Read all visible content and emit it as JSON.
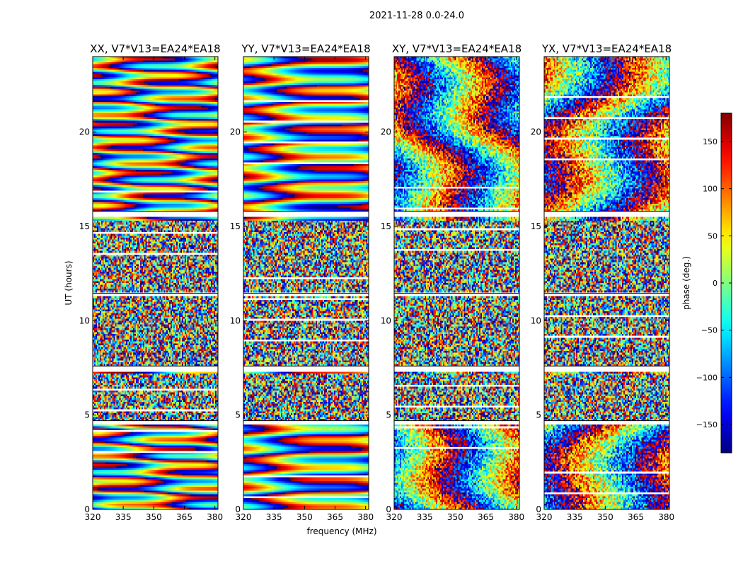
{
  "figure": {
    "suptitle": "2021-11-28 0.0-24.0",
    "xlabel": "frequency (MHz)",
    "ylabel": "UT (hours)"
  },
  "chart_data": {
    "type": "heatmap",
    "suptitle": "2021-11-28 0.0-24.0",
    "xlabel": "frequency (MHz)",
    "ylabel": "UT (hours)",
    "xlim": [
      320,
      381.5
    ],
    "ylim": [
      0,
      24
    ],
    "xticks": [
      320,
      335,
      350,
      365,
      380
    ],
    "yticks": [
      0,
      5,
      10,
      15,
      20
    ],
    "colormap": "jet",
    "panels": [
      {
        "title": "XX, V7*V13=EA24*EA18",
        "pol": "XX"
      },
      {
        "title": "YY, V7*V13=EA24*EA18",
        "pol": "YY"
      },
      {
        "title": "XY, V7*V13=EA24*EA18",
        "pol": "XY"
      },
      {
        "title": "YX, V7*V13=EA24*EA18",
        "pol": "YX"
      }
    ],
    "colorbar": {
      "label": "phase (deg.)",
      "range": [
        -180,
        180
      ],
      "ticks": [
        150,
        100,
        50,
        0,
        -50,
        -100,
        -150
      ],
      "tick_labels": [
        "150",
        "100",
        "50",
        "0",
        "−50",
        "−100",
        "−150"
      ]
    },
    "flagged_bands_ut": [
      [
        15.5,
        15.8
      ],
      [
        11.3,
        11.45
      ],
      [
        7.35,
        7.6
      ],
      [
        4.45,
        4.7
      ]
    ],
    "noise_ranges_ut": [
      [
        4.7,
        7.2
      ],
      [
        7.6,
        15.3
      ]
    ]
  }
}
